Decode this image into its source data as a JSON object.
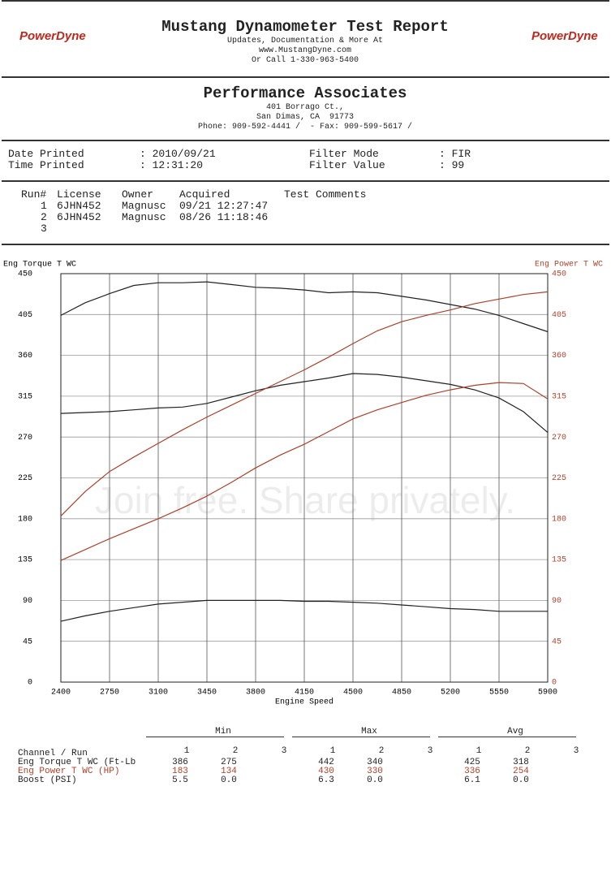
{
  "header": {
    "logo": "PowerDyne",
    "title": "Mustang Dynamometer Test Report",
    "lines": [
      "Updates, Documentation & More At",
      "www.MustangDyne.com",
      "Or Call 1-330-963-5400"
    ]
  },
  "shop": {
    "name": "Performance Associates",
    "lines": [
      "401 Borrago Ct.,",
      "San Dimas, CA  91773",
      "Phone: 909-592-4441 /  - Fax: 909-599-5617 /"
    ]
  },
  "info": [
    [
      "Date Printed",
      ": 2010/09/21",
      "Filter Mode",
      ": FIR"
    ],
    [
      "Time Printed",
      ": 12:31:20",
      "Filter Value",
      ": 99"
    ]
  ],
  "runs": {
    "headers": [
      "Run#",
      "License",
      "Owner",
      "Acquired",
      "Test Comments"
    ],
    "rows": [
      [
        "1",
        "6JHN452",
        "Magnusc",
        "09/21 12:27:47"
      ],
      [
        "2",
        "6JHN452",
        "Magnusc",
        "08/26 11:18:46"
      ],
      [
        "3"
      ]
    ]
  },
  "watermark": "Join free. Share privately.",
  "chart_data": {
    "type": "line",
    "ylabel": "Eng Torque T WC",
    "y2label": "Eng Power T WC",
    "xlabel": "Engine Speed",
    "x": [
      2400,
      2575,
      2750,
      2925,
      3100,
      3275,
      3450,
      3625,
      3800,
      3975,
      4150,
      4325,
      4500,
      4675,
      4850,
      5025,
      5200,
      5375,
      5550,
      5725,
      5900
    ],
    "xlim": [
      2400,
      5900
    ],
    "xticks": [
      2400,
      2750,
      3100,
      3450,
      3800,
      4150,
      4500,
      4850,
      5200,
      5550,
      5900
    ],
    "ylim": [
      0,
      450
    ],
    "yticks": [
      0,
      45,
      90,
      135,
      180,
      225,
      270,
      315,
      360,
      405,
      450
    ],
    "y2lim": [
      0,
      450
    ],
    "y2ticks": [
      0,
      45,
      90,
      135,
      180,
      225,
      270,
      315,
      360,
      405,
      450
    ],
    "grid": true,
    "series": [
      {
        "color": "#222222",
        "values": [
          404,
          418,
          428,
          437,
          440,
          440,
          441,
          438,
          435,
          434,
          432,
          429,
          430,
          429,
          425,
          421,
          416,
          411,
          404,
          395,
          386
        ]
      },
      {
        "color": "#222222",
        "values": [
          296,
          297,
          298,
          300,
          302,
          303,
          307,
          314,
          321,
          327,
          331,
          335,
          340,
          339,
          336,
          332,
          328,
          322,
          313,
          298,
          275
        ]
      },
      {
        "color": "#b0402a",
        "axis": "y2",
        "values": [
          183,
          210,
          232,
          248,
          263,
          278,
          292,
          305,
          318,
          331,
          344,
          358,
          373,
          387,
          397,
          404,
          410,
          417,
          422,
          427,
          430
        ]
      },
      {
        "color": "#b0402a",
        "axis": "y2",
        "values": [
          134,
          146,
          158,
          169,
          180,
          192,
          205,
          220,
          236,
          250,
          262,
          276,
          290,
          300,
          308,
          316,
          322,
          327,
          330,
          329,
          312
        ]
      },
      {
        "color": "#222222",
        "values": [
          67,
          73,
          78,
          82,
          86,
          88,
          90,
          90,
          90,
          90,
          89,
          89,
          88,
          87,
          85,
          83,
          81,
          80,
          78,
          78,
          78
        ]
      }
    ]
  },
  "summary": {
    "groups": [
      "Min",
      "Max",
      "Avg"
    ],
    "channel_header": "Channel / Run",
    "runs": [
      "1",
      "2",
      "3"
    ],
    "rows": [
      {
        "name": "Eng Torque T WC (Ft-Lb",
        "color": "#222222",
        "cells": [
          "386",
          "275",
          "442",
          "340",
          "425",
          "318"
        ]
      },
      {
        "name": "Eng Power T WC (HP)",
        "color": "#b0402a",
        "cells": [
          "183",
          "134",
          "430",
          "330",
          "336",
          "254"
        ]
      },
      {
        "name": "Boost (PSI)",
        "color": "#222222",
        "cells": [
          "5.5",
          "0.0",
          "6.3",
          "0.0",
          "6.1",
          "0.0"
        ]
      }
    ]
  }
}
